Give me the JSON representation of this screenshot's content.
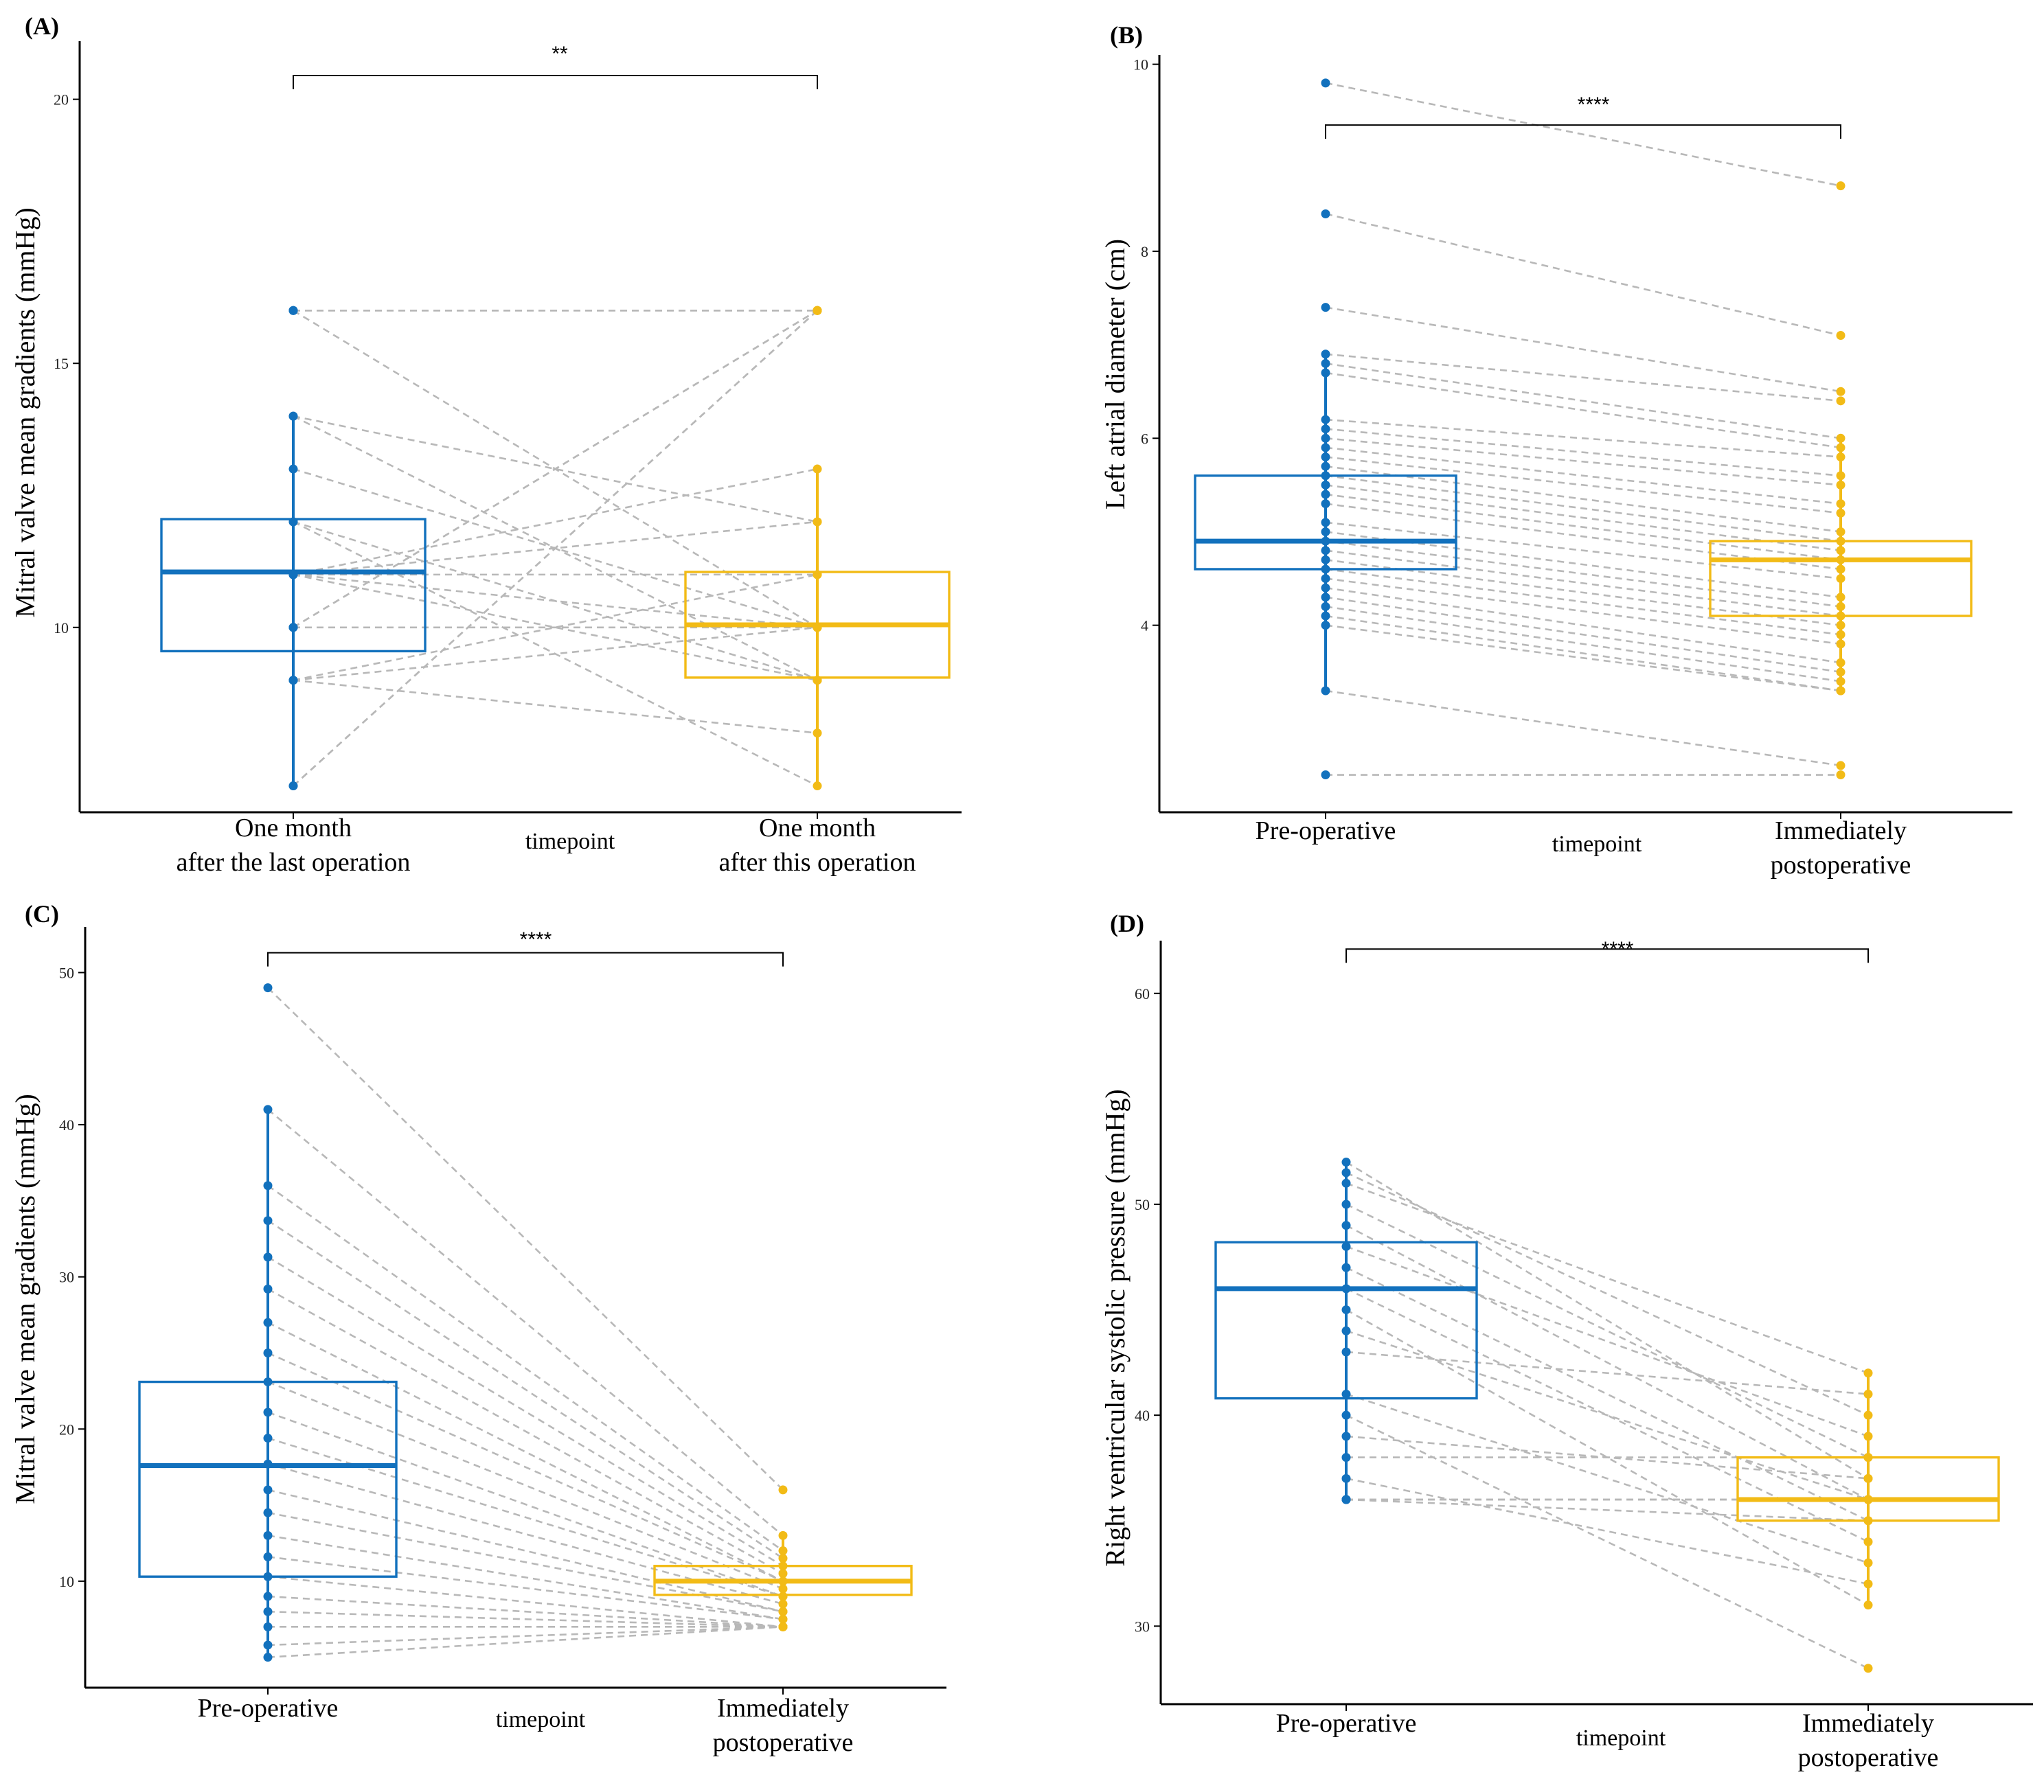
{
  "colors": {
    "pre": "#1271bd",
    "post": "#f2bb16",
    "pair_line": "#b8b8b8"
  },
  "chart_data": [
    {
      "type": "box",
      "panel_label": "(A)",
      "ylabel": "Mitral valve mean gradients (mmHg)",
      "xlabel": "timepoint",
      "categories": [
        "One month\nafter the last operation",
        "One month\nafter this operation"
      ],
      "category_lines": [
        [
          "One month",
          "after the last operation"
        ],
        [
          "One month",
          "after this operation"
        ]
      ],
      "ylim": [
        6.5,
        21.1
      ],
      "yticks": [
        10,
        15,
        20
      ],
      "significance": "**",
      "bracket_y": 20.45,
      "boxes": [
        {
          "group": "One month after the last operation",
          "q1": 9.55,
          "median": 11.05,
          "q3": 12.05,
          "whisker_low": 7,
          "whisker_high": 14
        },
        {
          "group": "One month after this operation",
          "q1": 9.05,
          "median": 10.05,
          "q3": 11.05,
          "whisker_low": 7,
          "whisker_high": 13
        }
      ],
      "points": {
        "pre": [
          16,
          16,
          16,
          14,
          14,
          13,
          12,
          12,
          11,
          11,
          11,
          11,
          11,
          10,
          10,
          10,
          9,
          9,
          9,
          7,
          7
        ],
        "post": [
          16,
          16,
          10,
          9,
          12,
          10,
          7,
          9,
          10,
          11,
          13,
          9,
          12,
          16,
          16,
          10,
          11,
          8,
          10,
          16,
          16
        ]
      }
    },
    {
      "type": "box",
      "panel_label": "(B)",
      "ylabel": "Left atrial diameter (cm)",
      "xlabel": "timepoint",
      "categories": [
        "Pre-operative",
        "Immediately\npostoperative"
      ],
      "category_lines": [
        [
          "Pre-operative"
        ],
        [
          "Immediately",
          "postoperative"
        ]
      ],
      "ylim": [
        2.0,
        10.1
      ],
      "yticks": [
        4,
        6,
        8,
        10
      ],
      "significance": "****",
      "bracket_y": 9.35,
      "boxes": [
        {
          "group": "Pre-operative",
          "q1": 4.6,
          "median": 4.9,
          "q3": 5.6,
          "whisker_low": 3.3,
          "whisker_high": 6.9
        },
        {
          "group": "Immediately postoperative",
          "q1": 4.1,
          "median": 4.7,
          "q3": 4.9,
          "whisker_low": 3.3,
          "whisker_high": 6.0
        }
      ],
      "points": {
        "pre": [
          9.8,
          8.4,
          7.4,
          6.9,
          6.8,
          6.7,
          6.2,
          6.1,
          6.0,
          5.9,
          5.8,
          5.7,
          5.6,
          5.5,
          5.4,
          5.3,
          5.1,
          5.0,
          4.9,
          4.8,
          4.7,
          4.6,
          4.5,
          4.4,
          4.3,
          4.2,
          4.1,
          4.0,
          3.3,
          2.4
        ],
        "post": [
          8.7,
          7.1,
          6.5,
          6.4,
          6.0,
          5.9,
          5.8,
          5.6,
          5.5,
          5.3,
          5.2,
          5.0,
          4.9,
          4.8,
          4.7,
          4.6,
          4.5,
          4.3,
          4.2,
          4.1,
          4.0,
          3.9,
          3.8,
          3.6,
          3.5,
          3.4,
          3.3,
          3.3,
          2.5,
          2.4
        ]
      }
    },
    {
      "type": "box",
      "panel_label": "(C)",
      "ylabel": "Mitral valve mean gradients (mmHg)",
      "xlabel": "timepoint",
      "categories": [
        "Pre-operative",
        "Immediately\npostoperative"
      ],
      "category_lines": [
        [
          "Pre-operative"
        ],
        [
          "Immediately",
          "postoperative"
        ]
      ],
      "ylim": [
        3.0,
        53.0
      ],
      "yticks": [
        10,
        20,
        30,
        40,
        50
      ],
      "significance": "****",
      "bracket_y": 51.3,
      "boxes": [
        {
          "group": "Pre-operative",
          "q1": 10.3,
          "median": 17.6,
          "q3": 23.1,
          "whisker_low": 5,
          "whisker_high": 41
        },
        {
          "group": "Immediately postoperative",
          "q1": 9.1,
          "median": 10.0,
          "q3": 11.0,
          "whisker_low": 7,
          "whisker_high": 13
        }
      ],
      "points": {
        "pre": [
          49,
          41,
          36,
          33.7,
          31.3,
          29.2,
          27,
          25,
          23.1,
          21.1,
          19.4,
          17.7,
          16,
          14.5,
          13,
          11.6,
          10.3,
          9,
          8,
          7,
          5.8,
          5
        ],
        "post": [
          16,
          13,
          12,
          11.5,
          11,
          10.5,
          10,
          10,
          9.5,
          9,
          9,
          8.5,
          8,
          8,
          7.5,
          7.5,
          7,
          7,
          7,
          7,
          7,
          7
        ]
      }
    },
    {
      "type": "box",
      "panel_label": "(D)",
      "ylabel": "Right ventricular systolic pressure (mmHg)",
      "xlabel": "timepoint",
      "categories": [
        "Pre-operative",
        "Immediately\npostoperative"
      ],
      "category_lines": [
        [
          "Pre-operative"
        ],
        [
          "Immediately",
          "postoperative"
        ]
      ],
      "ylim": [
        26.3,
        62.5
      ],
      "yticks": [
        30,
        40,
        50,
        60
      ],
      "significance": "****",
      "bracket_y": 62.1,
      "boxes": [
        {
          "group": "Pre-operative",
          "q1": 40.8,
          "median": 46,
          "q3": 48.2,
          "whisker_low": 36,
          "whisker_high": 52
        },
        {
          "group": "Immediately postoperative",
          "q1": 35,
          "median": 36,
          "q3": 38,
          "whisker_low": 31,
          "whisker_high": 42
        }
      ],
      "points": {
        "pre": [
          52,
          51.5,
          51,
          50,
          49,
          48,
          47,
          46,
          45,
          44,
          43,
          41,
          40,
          39,
          38,
          37,
          36,
          36,
          36,
          36
        ],
        "post": [
          37,
          40,
          42,
          38,
          36,
          39,
          35,
          34,
          31,
          36,
          41,
          33,
          28,
          37,
          38,
          32,
          35,
          36,
          36,
          36
        ]
      }
    }
  ]
}
